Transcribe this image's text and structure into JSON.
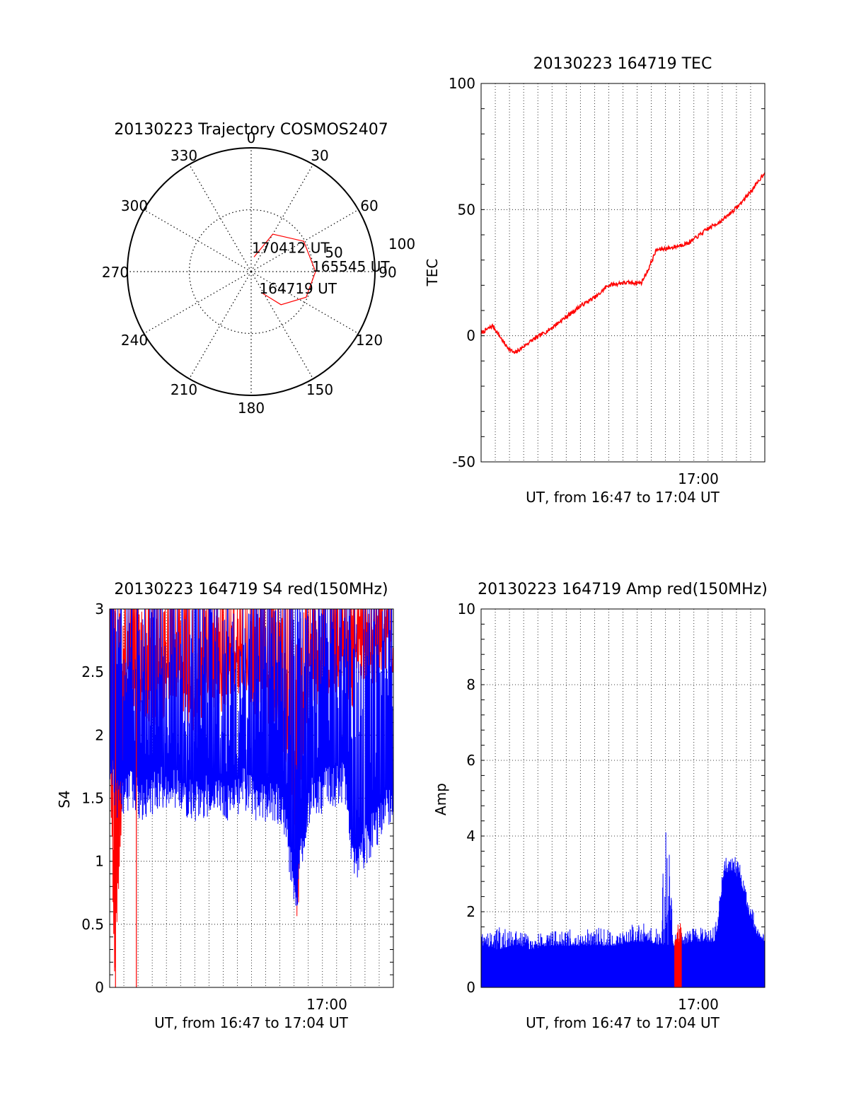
{
  "chart_data": [
    {
      "type": "polar-trajectory",
      "title": "20130223 Trajectory COSMOS2407",
      "angle_labels": [
        "0",
        "30",
        "60",
        "90",
        "120",
        "150",
        "180",
        "210",
        "240",
        "270",
        "300",
        "330"
      ],
      "radius_labels": [
        "50",
        "100"
      ],
      "rlim": [
        0,
        100
      ],
      "track_color": "#ff0000",
      "track": [
        {
          "az": 11,
          "el": 12
        },
        {
          "az": 30,
          "el": 35
        },
        {
          "az": 60,
          "el": 49
        },
        {
          "az": 90,
          "el": 52
        },
        {
          "az": 115,
          "el": 49
        },
        {
          "az": 138,
          "el": 36
        },
        {
          "az": 152,
          "el": 20
        }
      ],
      "labels": [
        {
          "text": "170412 UT",
          "az": 11,
          "el": 12
        },
        {
          "text": "165545 UT",
          "az": 90,
          "el": 52
        },
        {
          "text": "164719 UT",
          "az": 152,
          "el": 20
        }
      ]
    },
    {
      "type": "line",
      "title": "20130223 164719 TEC",
      "ylabel": "TEC",
      "xlabel": "UT, from 16:47 to 17:04 UT",
      "ylim": [
        -50,
        100
      ],
      "yticks": [
        "-50",
        "0",
        "50",
        "100"
      ],
      "xlim_minutes": [
        0,
        17
      ],
      "xtick_label": {
        "minute": 13,
        "label": "17:00"
      },
      "grid": true,
      "color": "#ff0000",
      "x_minutes": [
        0,
        0.7,
        1.0,
        1.5,
        2.0,
        3.0,
        4.0,
        5.0,
        6.0,
        7.0,
        7.6,
        8.5,
        9.0,
        9.6,
        10.0,
        10.5,
        11.5,
        12.5,
        13.5,
        14.5,
        15.5,
        16.5,
        17.0
      ],
      "values": [
        1,
        4,
        1,
        -4,
        -7,
        -2,
        2,
        7,
        12,
        16,
        20,
        21,
        21,
        21,
        26,
        34,
        35,
        37,
        42,
        46,
        52,
        60,
        65
      ]
    },
    {
      "type": "line",
      "title": "20130223 164719 S4 red(150MHz)",
      "ylabel": "S4",
      "xlabel": "UT, from 16:47 to 17:04 UT",
      "ylim": [
        0,
        3
      ],
      "yticks": [
        "0",
        "0.5",
        "1",
        "1.5",
        "2",
        "2.5",
        "3"
      ],
      "xlim_minutes": [
        0,
        17
      ],
      "xtick_label": {
        "minute": 13,
        "label": "17:00"
      },
      "grid": true,
      "series": [
        {
          "color": "#ff0000",
          "lower_envelope_x": [
            0.0,
            0.3,
            1.0,
            2.0,
            3.0,
            4.0,
            5.0,
            6.0,
            7.0,
            8.0,
            9.0,
            10.0,
            10.5,
            11.0,
            11.3,
            11.5,
            12.0,
            12.5,
            13.0,
            13.5,
            14.0,
            14.5,
            15.0,
            15.5,
            16.0,
            16.5,
            17.0
          ],
          "lower_envelope": [
            1.9,
            0.0,
            2.2,
            2.0,
            2.1,
            2.2,
            2.0,
            2.1,
            2.2,
            2.3,
            2.1,
            2.0,
            1.8,
            1.2,
            0.3,
            1.6,
            2.3,
            2.2,
            2.3,
            2.2,
            2.4,
            2.1,
            2.5,
            2.2,
            2.4,
            2.5,
            2.4
          ]
        },
        {
          "color": "#0000ff",
          "lower_envelope_x": [
            0.0,
            0.5,
            1.0,
            2.0,
            3.0,
            4.0,
            5.0,
            6.0,
            7.0,
            8.0,
            9.0,
            10.0,
            10.5,
            10.9,
            11.2,
            11.5,
            12.0,
            12.5,
            13.0,
            13.5,
            14.0,
            14.5,
            15.0,
            15.5,
            16.0,
            16.5,
            17.0
          ],
          "lower_envelope": [
            1.6,
            1.3,
            1.4,
            1.3,
            1.4,
            1.4,
            1.3,
            1.35,
            1.3,
            1.4,
            1.3,
            1.3,
            1.2,
            0.75,
            0.5,
            0.9,
            1.3,
            1.35,
            1.4,
            1.4,
            1.45,
            0.9,
            0.85,
            1.0,
            1.1,
            1.3,
            1.25
          ]
        }
      ]
    },
    {
      "type": "bar",
      "title": "20130223 164719 Amp red(150MHz)",
      "ylabel": "Amp",
      "xlabel": "UT, from 16:47 to 17:04 UT",
      "ylim": [
        0,
        10
      ],
      "yticks": [
        "0",
        "2",
        "4",
        "6",
        "8",
        "10"
      ],
      "xlim_minutes": [
        0,
        17
      ],
      "xtick_label": {
        "minute": 13,
        "label": "17:00"
      },
      "grid": true,
      "series": [
        {
          "color": "#0000ff",
          "x_minutes": [
            0.0,
            1.0,
            2.0,
            3.0,
            4.0,
            5.0,
            6.0,
            7.0,
            8.0,
            9.0,
            10.0,
            10.8,
            11.0,
            11.2,
            11.5,
            12.0,
            12.5,
            13.0,
            13.5,
            14.0,
            14.2,
            14.5,
            15.0,
            15.5,
            16.0,
            16.5,
            17.0
          ],
          "upper_envelope": [
            1.4,
            1.6,
            1.5,
            1.4,
            1.5,
            1.5,
            1.6,
            1.6,
            1.5,
            1.7,
            1.7,
            1.5,
            5.2,
            4.6,
            1.4,
            1.5,
            1.5,
            1.7,
            1.6,
            1.6,
            2.0,
            3.4,
            3.6,
            3.3,
            2.6,
            1.8,
            1.4
          ],
          "base_envelope": [
            1.1,
            1.0,
            1.1,
            1.0,
            1.1,
            1.1,
            1.1,
            1.1,
            1.1,
            1.2,
            1.2,
            1.1,
            1.1,
            1.1,
            1.1,
            1.1,
            1.2,
            1.2,
            1.2,
            1.2,
            1.6,
            2.9,
            3.0,
            2.9,
            2.0,
            1.4,
            1.2
          ]
        },
        {
          "color": "#ff0000",
          "x_minutes": [
            11.6,
            11.8,
            12.0
          ],
          "upper_envelope": [
            1.3,
            1.9,
            1.6
          ],
          "base_envelope": [
            1.1,
            1.2,
            1.2
          ]
        }
      ]
    }
  ]
}
